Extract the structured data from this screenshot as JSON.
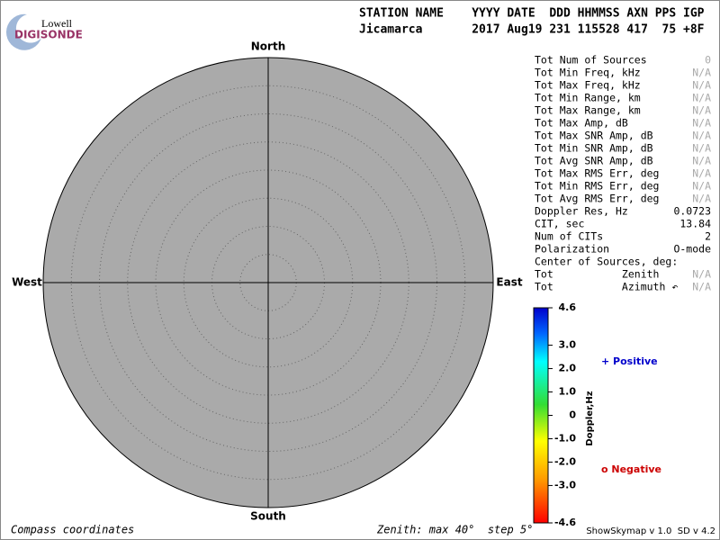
{
  "logo": {
    "brand": "Lowell",
    "product": "DIGISONDE"
  },
  "header": {
    "labels": "STATION NAME    YYYY DATE  DDD HHMMSS AXN PPS IGP",
    "values": "Jicamarca       2017 Aug19 231 115528 417  75 +8F"
  },
  "compass": {
    "north": "North",
    "south": "South",
    "east": "East",
    "west": "West"
  },
  "stats": [
    {
      "label": "Tot Num of Sources",
      "value": "0",
      "color": "#aaaaaa"
    },
    {
      "label": "Tot Min Freq, kHz",
      "value": "N/A",
      "color": "#aaaaaa"
    },
    {
      "label": "Tot Max Freq, kHz",
      "value": "N/A",
      "color": "#aaaaaa"
    },
    {
      "label": "Tot Min Range, km",
      "value": "N/A",
      "color": "#aaaaaa"
    },
    {
      "label": "Tot Max Range, km",
      "value": "N/A",
      "color": "#aaaaaa"
    },
    {
      "label": "Tot Max Amp, dB",
      "value": "N/A",
      "color": "#aaaaaa"
    },
    {
      "label": "Tot Max SNR Amp, dB",
      "value": "N/A",
      "color": "#aaaaaa"
    },
    {
      "label": "Tot Min SNR Amp, dB",
      "value": "N/A",
      "color": "#aaaaaa"
    },
    {
      "label": "Tot Avg SNR Amp, dB",
      "value": "N/A",
      "color": "#aaaaaa"
    },
    {
      "label": "Tot Max RMS Err, deg",
      "value": "N/A",
      "color": "#aaaaaa"
    },
    {
      "label": "Tot Min RMS Err, deg",
      "value": "N/A",
      "color": "#aaaaaa"
    },
    {
      "label": "Tot Avg RMS Err, deg",
      "value": "N/A",
      "color": "#aaaaaa"
    },
    {
      "label": "Doppler Res, Hz",
      "value": "0.0723",
      "color": "#000000"
    },
    {
      "label": "CIT, sec",
      "value": "13.84",
      "color": "#000000"
    },
    {
      "label": "Num of CITs",
      "value": "2",
      "color": "#000000"
    },
    {
      "label": "Polarization",
      "value": "O-mode",
      "color": "#000000"
    },
    {
      "label": "Center of Sources, deg:"
    },
    {
      "label": "Tot           Zenith",
      "value": "N/A",
      "color": "#aaaaaa"
    },
    {
      "label": "Tot           Azimuth ↶",
      "value": "N/A",
      "color": "#aaaaaa"
    }
  ],
  "colorbar": {
    "title": "Doppler,Hz",
    "lim": [
      -4.6,
      4.6
    ],
    "ticks": [
      4.6,
      {
        "value": 3,
        "label": "3.0"
      },
      {
        "value": 2,
        "label": "2.0"
      },
      {
        "value": 1,
        "label": "1.0"
      },
      0,
      {
        "value": -1,
        "label": "-1.0"
      },
      {
        "value": -2,
        "label": "-2.0"
      },
      {
        "value": -3,
        "label": "-3.0"
      },
      -4.6
    ]
  },
  "legend": {
    "positive": "+ Positive",
    "positive_color": "#0000cc",
    "negative": "o Negative",
    "negative_color": "#cc0000"
  },
  "footer": {
    "left": "Compass coordinates",
    "center": "Zenith: max 40°  step 5°",
    "right": "ShowSkymap v 1.0  SD v 4.2"
  }
}
